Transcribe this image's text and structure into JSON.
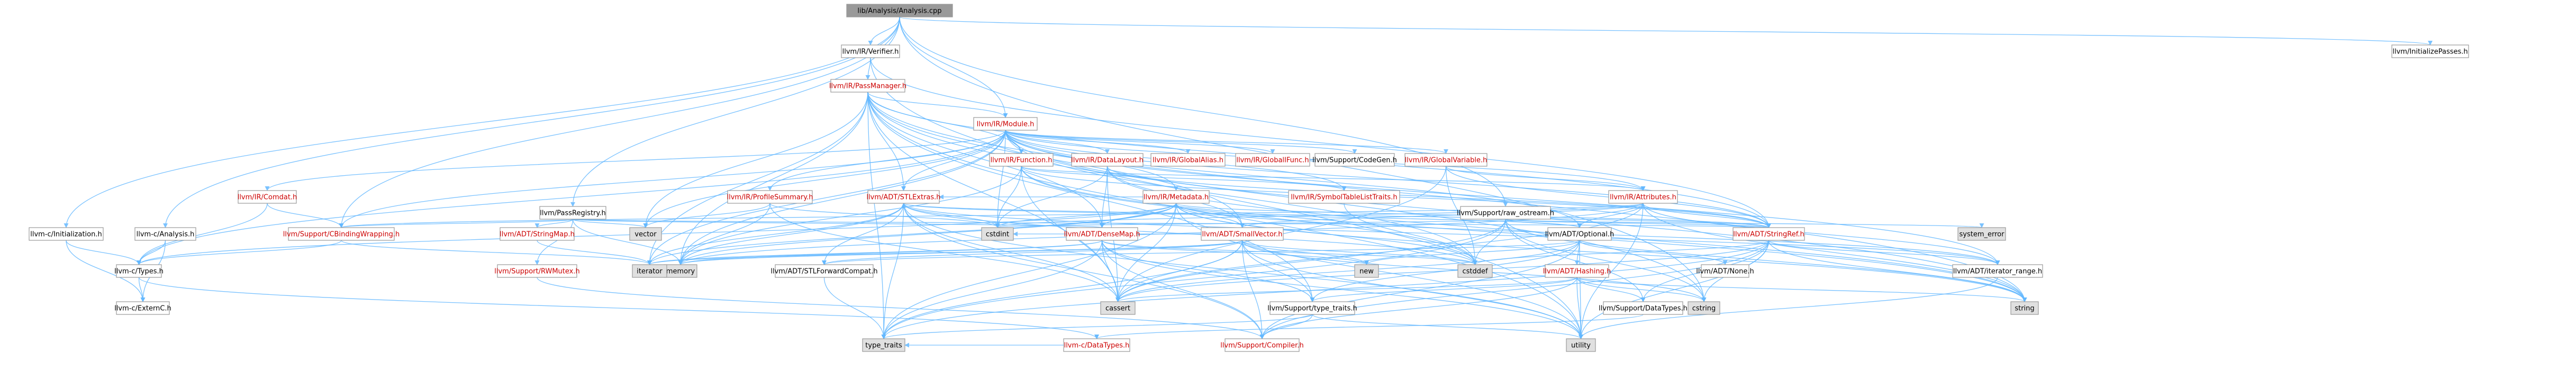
{
  "graph": {
    "title": "lib/Analysis/Analysis.cpp",
    "colors": {
      "root_fill": "#999999",
      "node_fill": "#ffffff",
      "system_fill": "#e0e0e0",
      "border": "#999999",
      "edge": "#63b8ff",
      "link_text": "#cc0000",
      "plain_text": "#000000"
    },
    "nodes": [
      {
        "id": "root",
        "label": "lib/Analysis/Analysis.cpp",
        "kind": "root"
      },
      {
        "id": "verifier",
        "label": "llvm/IR/Verifier.h",
        "kind": "plain"
      },
      {
        "id": "initpasses",
        "label": "llvm/InitializePasses.h",
        "kind": "plain"
      },
      {
        "id": "passmanager",
        "label": "llvm/IR/PassManager.h",
        "kind": "link"
      },
      {
        "id": "module",
        "label": "llvm/IR/Module.h",
        "kind": "link"
      },
      {
        "id": "comdat",
        "label": "llvm/IR/Comdat.h",
        "kind": "link"
      },
      {
        "id": "function",
        "label": "llvm/IR/Function.h",
        "kind": "link"
      },
      {
        "id": "datalayout",
        "label": "llvm/IR/DataLayout.h",
        "kind": "link"
      },
      {
        "id": "globalalias",
        "label": "llvm/IR/GlobalAlias.h",
        "kind": "link"
      },
      {
        "id": "globalifunc",
        "label": "llvm/IR/GlobalIFunc.h",
        "kind": "link"
      },
      {
        "id": "codegen",
        "label": "llvm/Support/CodeGen.h",
        "kind": "plain"
      },
      {
        "id": "globalvariable",
        "label": "llvm/IR/GlobalVariable.h",
        "kind": "link"
      },
      {
        "id": "profilesummary",
        "label": "llvm/IR/ProfileSummary.h",
        "kind": "link"
      },
      {
        "id": "stlextras",
        "label": "llvm/ADT/STLExtras.h",
        "kind": "link"
      },
      {
        "id": "metadata",
        "label": "llvm/IR/Metadata.h",
        "kind": "link"
      },
      {
        "id": "symtablelist",
        "label": "llvm/IR/SymbolTableListTraits.h",
        "kind": "link"
      },
      {
        "id": "attributes",
        "label": "llvm/IR/Attributes.h",
        "kind": "link"
      },
      {
        "id": "rawostream",
        "label": "llvm/Support/raw_ostream.h",
        "kind": "plain"
      },
      {
        "id": "passregistry",
        "label": "llvm/PassRegistry.h",
        "kind": "plain"
      },
      {
        "id": "cinit",
        "label": "llvm-c/Initialization.h",
        "kind": "plain"
      },
      {
        "id": "canalysis",
        "label": "llvm-c/Analysis.h",
        "kind": "plain"
      },
      {
        "id": "cbinding",
        "label": "llvm/Support/CBindingWrapping.h",
        "kind": "link"
      },
      {
        "id": "stringmap",
        "label": "llvm/ADT/StringMap.h",
        "kind": "link"
      },
      {
        "id": "rwmutex",
        "label": "llvm/Support/RWMutex.h",
        "kind": "link"
      },
      {
        "id": "densemap",
        "label": "llvm/ADT/DenseMap.h",
        "kind": "link"
      },
      {
        "id": "smallvector",
        "label": "llvm/ADT/SmallVector.h",
        "kind": "link"
      },
      {
        "id": "optional",
        "label": "llvm/ADT/Optional.h",
        "kind": "plain"
      },
      {
        "id": "stringref",
        "label": "llvm/ADT/StringRef.h",
        "kind": "link"
      },
      {
        "id": "ctypes",
        "label": "llvm-c/Types.h",
        "kind": "plain"
      },
      {
        "id": "cexternc",
        "label": "llvm-c/ExternC.h",
        "kind": "plain"
      },
      {
        "id": "stlforward",
        "label": "llvm/ADT/STLForwardCompat.h",
        "kind": "plain"
      },
      {
        "id": "hashing",
        "label": "llvm/ADT/Hashing.h",
        "kind": "link"
      },
      {
        "id": "none",
        "label": "llvm/ADT/None.h",
        "kind": "plain"
      },
      {
        "id": "iterrange",
        "label": "llvm/ADT/iterator_range.h",
        "kind": "plain"
      },
      {
        "id": "typetraitsh",
        "label": "llvm/Support/type_traits.h",
        "kind": "plain"
      },
      {
        "id": "datatypesh",
        "label": "llvm/Support/DataTypes.h",
        "kind": "plain"
      },
      {
        "id": "cdatatypes",
        "label": "llvm-c/DataTypes.h",
        "kind": "link"
      },
      {
        "id": "compiler",
        "label": "llvm/Support/Compiler.h",
        "kind": "link"
      },
      {
        "id": "vector",
        "label": "vector",
        "kind": "system"
      },
      {
        "id": "cstdint",
        "label": "cstdint",
        "kind": "system"
      },
      {
        "id": "memory",
        "label": "memory",
        "kind": "system"
      },
      {
        "id": "iterator",
        "label": "iterator",
        "kind": "system"
      },
      {
        "id": "new",
        "label": "new",
        "kind": "system"
      },
      {
        "id": "cstddef",
        "label": "cstddef",
        "kind": "system"
      },
      {
        "id": "cassert",
        "label": "cassert",
        "kind": "system"
      },
      {
        "id": "cstring",
        "label": "cstring",
        "kind": "system"
      },
      {
        "id": "string",
        "label": "string",
        "kind": "system"
      },
      {
        "id": "utility",
        "label": "utility",
        "kind": "system"
      },
      {
        "id": "systemerror",
        "label": "system_error",
        "kind": "system"
      },
      {
        "id": "typetraits",
        "label": "type_traits",
        "kind": "system"
      }
    ],
    "edges": [
      [
        "root",
        "verifier"
      ],
      [
        "root",
        "initpasses"
      ],
      [
        "root",
        "module"
      ],
      [
        "root",
        "passregistry"
      ],
      [
        "root",
        "cinit"
      ],
      [
        "root",
        "canalysis"
      ],
      [
        "root",
        "cbinding"
      ],
      [
        "root",
        "rawostream"
      ],
      [
        "root",
        "cstring"
      ],
      [
        "verifier",
        "passmanager"
      ],
      [
        "verifier",
        "stringref"
      ],
      [
        "verifier",
        "utility"
      ],
      [
        "passmanager",
        "module"
      ],
      [
        "passmanager",
        "function"
      ],
      [
        "passmanager",
        "densemap"
      ],
      [
        "passmanager",
        "smallvector"
      ],
      [
        "passmanager",
        "stlextras"
      ],
      [
        "passmanager",
        "stringref"
      ],
      [
        "passmanager",
        "typetraitsh"
      ],
      [
        "passmanager",
        "vector"
      ],
      [
        "passmanager",
        "memory"
      ],
      [
        "passmanager",
        "iterator"
      ],
      [
        "passmanager",
        "cassert"
      ],
      [
        "passmanager",
        "string"
      ],
      [
        "passmanager",
        "typetraits"
      ],
      [
        "passmanager",
        "utility"
      ],
      [
        "passmanager",
        "cstring"
      ],
      [
        "module",
        "comdat"
      ],
      [
        "module",
        "function"
      ],
      [
        "module",
        "datalayout"
      ],
      [
        "module",
        "globalalias"
      ],
      [
        "module",
        "globalifunc"
      ],
      [
        "module",
        "codegen"
      ],
      [
        "module",
        "globalvariable"
      ],
      [
        "module",
        "profilesummary"
      ],
      [
        "module",
        "stlextras"
      ],
      [
        "module",
        "metadata"
      ],
      [
        "module",
        "symtablelist"
      ],
      [
        "module",
        "attributes"
      ],
      [
        "module",
        "stringref"
      ],
      [
        "module",
        "optional"
      ],
      [
        "module",
        "iterrange"
      ],
      [
        "module",
        "cbinding"
      ],
      [
        "module",
        "ctypes"
      ],
      [
        "module",
        "vector"
      ],
      [
        "module",
        "cstddef"
      ],
      [
        "module",
        "cstdint"
      ],
      [
        "module",
        "iterator"
      ],
      [
        "module",
        "memory"
      ],
      [
        "module",
        "string"
      ],
      [
        "comdat",
        "ctypes"
      ],
      [
        "comdat",
        "cbinding"
      ],
      [
        "function",
        "attributes"
      ],
      [
        "function",
        "stringref"
      ],
      [
        "function",
        "symtablelist"
      ],
      [
        "function",
        "cstdint"
      ],
      [
        "function",
        "cassert"
      ],
      [
        "function",
        "cstddef"
      ],
      [
        "function",
        "memory"
      ],
      [
        "function",
        "string"
      ],
      [
        "datalayout",
        "stringref"
      ],
      [
        "datalayout",
        "densemap"
      ],
      [
        "datalayout",
        "smallvector"
      ],
      [
        "datalayout",
        "cassert"
      ],
      [
        "datalayout",
        "cstdint"
      ],
      [
        "datalayout",
        "string"
      ],
      [
        "globalvariable",
        "attributes"
      ],
      [
        "globalvariable",
        "stringref"
      ],
      [
        "globalvariable",
        "cassert"
      ],
      [
        "globalvariable",
        "cstddef"
      ],
      [
        "profilesummary",
        "vector"
      ],
      [
        "profilesummary",
        "memory"
      ],
      [
        "profilesummary",
        "cassert"
      ],
      [
        "profilesummary",
        "cstdint"
      ],
      [
        "stlextras",
        "stlforward"
      ],
      [
        "stlextras",
        "iterrange"
      ],
      [
        "stlextras",
        "optional"
      ],
      [
        "stlextras",
        "cassert"
      ],
      [
        "stlextras",
        "cstddef"
      ],
      [
        "stlextras",
        "cstdint"
      ],
      [
        "stlextras",
        "memory"
      ],
      [
        "stlextras",
        "typetraits"
      ],
      [
        "stlextras",
        "utility"
      ],
      [
        "stlextras",
        "iterator"
      ],
      [
        "stlextras",
        "compiler"
      ],
      [
        "metadata",
        "densemap"
      ],
      [
        "metadata",
        "smallvector"
      ],
      [
        "metadata",
        "stlextras"
      ],
      [
        "metadata",
        "stringref"
      ],
      [
        "metadata",
        "iterrange"
      ],
      [
        "metadata",
        "ctypes"
      ],
      [
        "metadata",
        "cassert"
      ],
      [
        "metadata",
        "cstddef"
      ],
      [
        "metadata",
        "cstdint"
      ],
      [
        "metadata",
        "iterator"
      ],
      [
        "metadata",
        "memory"
      ],
      [
        "metadata",
        "string"
      ],
      [
        "metadata",
        "typetraits"
      ],
      [
        "metadata",
        "utility"
      ],
      [
        "symtablelist",
        "cstddef"
      ],
      [
        "attributes",
        "optional"
      ],
      [
        "attributes",
        "stringref"
      ],
      [
        "attributes",
        "smallvector"
      ],
      [
        "attributes",
        "iterrange"
      ],
      [
        "attributes",
        "cassert"
      ],
      [
        "attributes",
        "cstdint"
      ],
      [
        "attributes",
        "memory"
      ],
      [
        "attributes",
        "string"
      ],
      [
        "attributes",
        "utility"
      ],
      [
        "attributes",
        "cbinding"
      ],
      [
        "rawostream",
        "stringref"
      ],
      [
        "rawostream",
        "datatypesh"
      ],
      [
        "rawostream",
        "cassert"
      ],
      [
        "rawostream",
        "cstddef"
      ],
      [
        "rawostream",
        "cstdint"
      ],
      [
        "rawostream",
        "cstring"
      ],
      [
        "rawostream",
        "string"
      ],
      [
        "rawostream",
        "systemerror"
      ],
      [
        "rawostream",
        "typetraits"
      ],
      [
        "rawostream",
        "optional"
      ],
      [
        "passregistry",
        "cbinding"
      ],
      [
        "passregistry",
        "densemap"
      ],
      [
        "passregistry",
        "stringmap"
      ],
      [
        "passregistry",
        "rwmutex"
      ],
      [
        "passregistry",
        "memory"
      ],
      [
        "passregistry",
        "vector"
      ],
      [
        "passregistry",
        "stringref"
      ],
      [
        "cinit",
        "cexternc"
      ],
      [
        "cinit",
        "ctypes"
      ],
      [
        "canalysis",
        "cexternc"
      ],
      [
        "canalysis",
        "ctypes"
      ],
      [
        "cbinding",
        "ctypes"
      ],
      [
        "cbinding",
        "iterator"
      ],
      [
        "stringmap",
        "iterator"
      ],
      [
        "rwmutex",
        "compiler"
      ],
      [
        "densemap",
        "compiler"
      ],
      [
        "densemap",
        "typetraitsh"
      ],
      [
        "densemap",
        "cassert"
      ],
      [
        "densemap",
        "cstddef"
      ],
      [
        "densemap",
        "new"
      ],
      [
        "densemap",
        "utility"
      ],
      [
        "densemap",
        "memory"
      ],
      [
        "densemap",
        "iterator"
      ],
      [
        "densemap",
        "typetraits"
      ],
      [
        "smallvector",
        "compiler"
      ],
      [
        "smallvector",
        "typetraitsh"
      ],
      [
        "smallvector",
        "cassert"
      ],
      [
        "smallvector",
        "cstddef"
      ],
      [
        "smallvector",
        "cstdint"
      ],
      [
        "smallvector",
        "cstring"
      ],
      [
        "smallvector",
        "new"
      ],
      [
        "smallvector",
        "utility"
      ],
      [
        "smallvector",
        "memory"
      ],
      [
        "smallvector",
        "iterator"
      ],
      [
        "smallvector",
        "stlforward"
      ],
      [
        "smallvector",
        "typetraits"
      ],
      [
        "optional",
        "hashing"
      ],
      [
        "optional",
        "none"
      ],
      [
        "optional",
        "stlforward"
      ],
      [
        "optional",
        "typetraitsh"
      ],
      [
        "optional",
        "cassert"
      ],
      [
        "optional",
        "new"
      ],
      [
        "optional",
        "utility"
      ],
      [
        "optional",
        "compiler"
      ],
      [
        "stringref",
        "iterrange"
      ],
      [
        "stringref",
        "compiler"
      ],
      [
        "stringref",
        "cassert"
      ],
      [
        "stringref",
        "cstddef"
      ],
      [
        "stringref",
        "cstring"
      ],
      [
        "stringref",
        "string"
      ],
      [
        "stringref",
        "utility"
      ],
      [
        "stringref",
        "typetraits"
      ],
      [
        "stringref",
        "datatypesh"
      ],
      [
        "stringref",
        "stlextras"
      ],
      [
        "ctypes",
        "cdatatypes"
      ],
      [
        "ctypes",
        "cexternc"
      ],
      [
        "stlforward",
        "typetraits"
      ],
      [
        "hashing",
        "datatypesh"
      ],
      [
        "hashing",
        "typetraitsh"
      ],
      [
        "hashing",
        "cassert"
      ],
      [
        "hashing",
        "cstring"
      ],
      [
        "hashing",
        "string"
      ],
      [
        "hashing",
        "utility"
      ],
      [
        "hashing",
        "compiler"
      ],
      [
        "iterrange",
        "utility"
      ],
      [
        "typetraitsh",
        "typetraits"
      ],
      [
        "typetraitsh",
        "utility"
      ],
      [
        "typetraitsh",
        "compiler"
      ],
      [
        "datatypesh",
        "cdatatypes"
      ],
      [
        "cdatatypes",
        "typetraits"
      ]
    ]
  }
}
